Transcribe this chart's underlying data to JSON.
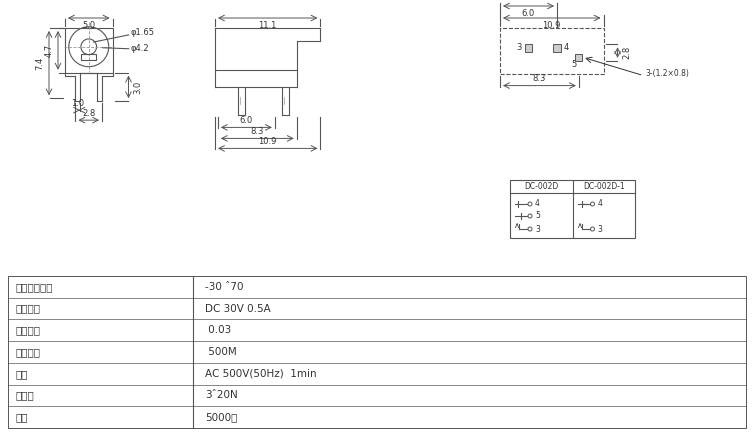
{
  "bg_color": "#ffffff",
  "line_color": "#555555",
  "text_color": "#333333",
  "fig_width": 7.55,
  "fig_height": 4.34,
  "specs": [
    [
      "使用温度范围",
      "-30 ˆ70"
    ],
    [
      "额定负荷",
      "DC 30V 0.5A"
    ],
    [
      "接触电阱",
      " 0.03"
    ],
    [
      "绝缘电阱",
      " 500M"
    ],
    [
      "耐压",
      "AC 500V(50Hz)  1min"
    ],
    [
      "动作力",
      "3ˆ20N"
    ],
    [
      "寿命",
      "5000次"
    ]
  ]
}
